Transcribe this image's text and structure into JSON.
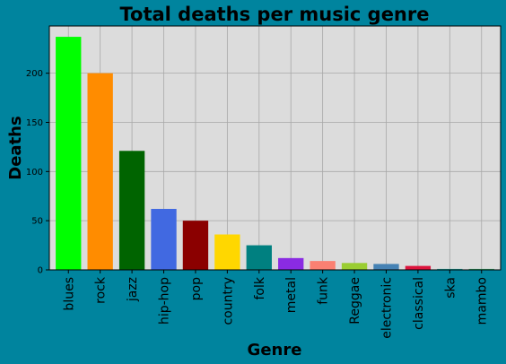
{
  "chart_data": {
    "type": "bar",
    "title": "Total deaths per music genre",
    "xlabel": "Genre",
    "ylabel": "Deaths",
    "categories": [
      "blues",
      "rock",
      "jazz",
      "hip-hop",
      "pop",
      "country",
      "folk",
      "metal",
      "funk",
      "Reggae",
      "electronic",
      "classical",
      "ska",
      "mambo"
    ],
    "values": [
      237,
      200,
      121,
      62,
      50,
      36,
      25,
      12,
      9,
      7,
      6,
      4,
      1,
      1
    ],
    "bar_colors": [
      "#00ff00",
      "#ff8c00",
      "#006400",
      "#4169e1",
      "#8b0000",
      "#ffd700",
      "#008080",
      "#8a2be2",
      "#fa8072",
      "#9acd32",
      "#4682b4",
      "#dc143c",
      "#20b2aa",
      "#3cb371"
    ],
    "ylim": [
      0,
      248
    ],
    "yticks": [
      0,
      50,
      100,
      150,
      200
    ],
    "grid": true,
    "legend": "none",
    "plot_background": "#dcdcdc",
    "figure_background": "#00849e"
  }
}
